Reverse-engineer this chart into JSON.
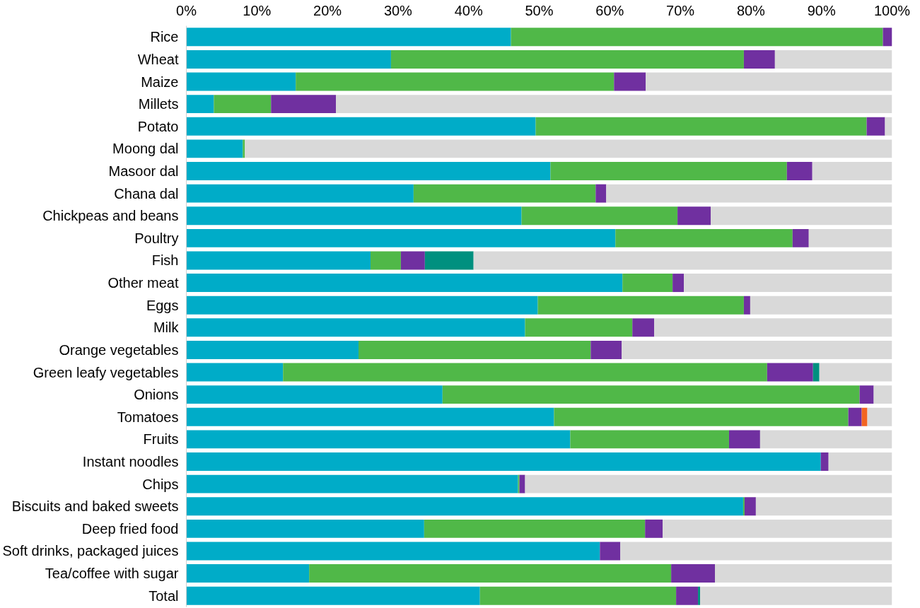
{
  "chart_data": {
    "type": "bar",
    "orientation": "horizontal",
    "stacked": true,
    "categories": [
      "Rice",
      "Wheat",
      "Maize",
      "Millets",
      "Potato",
      "Moong dal",
      "Masoor dal",
      "Chana dal",
      "Chickpeas and beans",
      "Poultry",
      "Fish",
      "Other meat",
      "Eggs",
      "Milk",
      "Orange vegetables",
      "Green leafy vegetables",
      "Onions",
      "Tomatoes",
      "Fruits",
      "Instant noodles",
      "Chips",
      "Biscuits and baked sweets",
      "Deep fried food",
      "Soft drinks, packaged juices",
      "Tea/coffee with sugar",
      "Total"
    ],
    "series": [
      {
        "color": "#00acc8",
        "values": [
          46,
          29,
          15.5,
          3.9,
          49.5,
          8.0,
          51.6,
          32.2,
          47.5,
          60.8,
          26.1,
          61.8,
          49.8,
          48.0,
          24.4,
          13.7,
          36.3,
          52.1,
          54.4,
          89.9,
          47.0,
          78.9,
          33.7,
          58.6,
          17.4,
          41.6
        ]
      },
      {
        "color": "#50b848",
        "values": [
          52.7,
          50,
          45.1,
          8.1,
          46.9,
          0.3,
          33.5,
          25.8,
          22.1,
          25.1,
          4.3,
          7.1,
          29.2,
          15.2,
          32.9,
          68.6,
          59.1,
          41.7,
          22.5,
          0,
          0.2,
          0.2,
          31.3,
          0,
          51.3,
          27.8
        ]
      },
      {
        "color": "#7030a0",
        "values": [
          1.3,
          4.4,
          4.5,
          9.2,
          2.6,
          0,
          3.6,
          1.5,
          4.7,
          2.3,
          3.4,
          1.6,
          0.9,
          3.1,
          4.4,
          6.5,
          2.0,
          1.9,
          4.4,
          1.1,
          0.8,
          1.6,
          2.5,
          2.9,
          6.2,
          3.1
        ]
      },
      {
        "color": "#00907f",
        "values": [
          0,
          0,
          0,
          0,
          0,
          0,
          0,
          0,
          0,
          0,
          6.9,
          0,
          0,
          0,
          0,
          0.9,
          0,
          0,
          0,
          0,
          0,
          0,
          0,
          0,
          0,
          0.3
        ]
      },
      {
        "color": "#f26522",
        "values": [
          0,
          0,
          0,
          0,
          0,
          0,
          0,
          0,
          0,
          0,
          0,
          0,
          0,
          0,
          0,
          0,
          0,
          0.8,
          0,
          0,
          0,
          0,
          0,
          0,
          0,
          0
        ]
      },
      {
        "color": "#d9d9d9",
        "values": [
          0,
          16.6,
          34.9,
          78.8,
          1.0,
          91.7,
          11.3,
          40.5,
          25.7,
          11.8,
          59.3,
          29.5,
          20.1,
          33.7,
          38.3,
          10.3,
          2.6,
          3.5,
          18.7,
          9.0,
          52.0,
          19.3,
          32.5,
          38.5,
          25.1,
          27.2
        ]
      }
    ],
    "xlim": [
      0,
      100
    ],
    "xticks": [
      {
        "value": 0,
        "label": "0%"
      },
      {
        "value": 10,
        "label": "10%"
      },
      {
        "value": 20,
        "label": "20%"
      },
      {
        "value": 30,
        "label": "30%"
      },
      {
        "value": 40,
        "label": "40%"
      },
      {
        "value": 50,
        "label": "50%"
      },
      {
        "value": 60,
        "label": "60%"
      },
      {
        "value": 70,
        "label": "70%"
      },
      {
        "value": 80,
        "label": "80%"
      },
      {
        "value": 90,
        "label": "90%"
      },
      {
        "value": 100,
        "label": "100%"
      }
    ],
    "grid": false
  }
}
